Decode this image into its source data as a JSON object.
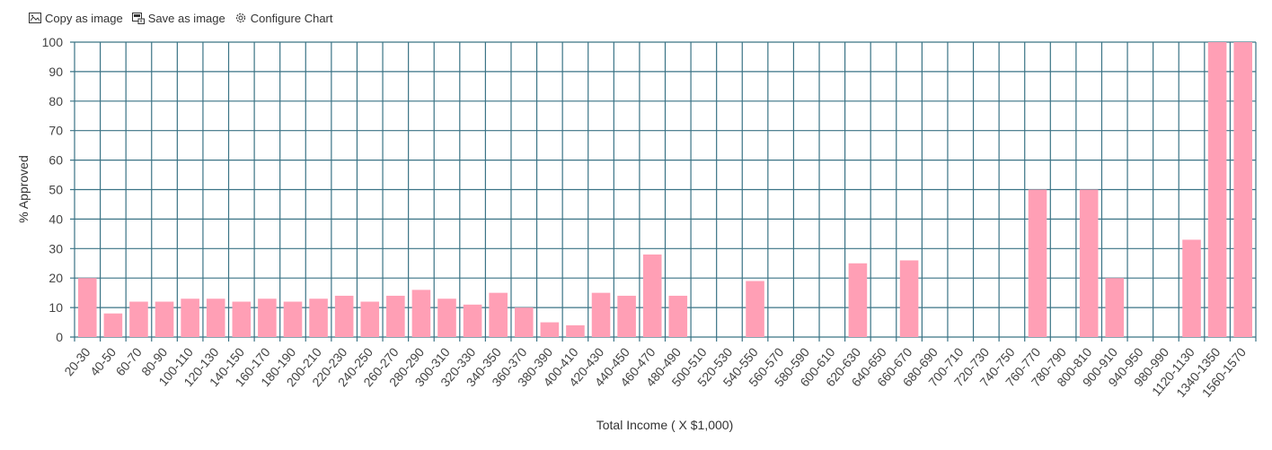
{
  "toolbar": {
    "copy_label": "Copy as image",
    "save_label": "Save as image",
    "configure_label": "Configure Chart"
  },
  "colors": {
    "bar": "#ff9fb5",
    "grid": "#3a7385",
    "text": "#444444"
  },
  "chart_data": {
    "type": "bar",
    "title": "",
    "xlabel": "Total Income ( X $1,000)",
    "ylabel": "% Approved",
    "ylim": [
      0,
      100
    ],
    "yticks": [
      0,
      10,
      20,
      30,
      40,
      50,
      60,
      70,
      80,
      90,
      100
    ],
    "grid": true,
    "categories": [
      "20-30",
      "40-50",
      "60-70",
      "80-90",
      "100-110",
      "120-130",
      "140-150",
      "160-170",
      "180-190",
      "200-210",
      "220-230",
      "240-250",
      "260-270",
      "280-290",
      "300-310",
      "320-330",
      "340-350",
      "360-370",
      "380-390",
      "400-410",
      "420-430",
      "440-450",
      "460-470",
      "480-490",
      "500-510",
      "520-530",
      "540-550",
      "560-570",
      "580-590",
      "600-610",
      "620-630",
      "640-650",
      "660-670",
      "680-690",
      "700-710",
      "720-730",
      "740-750",
      "760-770",
      "780-790",
      "800-810",
      "900-910",
      "940-950",
      "980-990",
      "1120-1130",
      "1340-1350",
      "1560-1570"
    ],
    "values": [
      20,
      8,
      12,
      12,
      13,
      13,
      12,
      13,
      12,
      13,
      14,
      12,
      14,
      16,
      13,
      11,
      15,
      10,
      5,
      4,
      15,
      14,
      28,
      14,
      0,
      0,
      19,
      0,
      0,
      0,
      25,
      0,
      26,
      0,
      0,
      0,
      0,
      50,
      0,
      50,
      20,
      0,
      0,
      33,
      100,
      100
    ]
  }
}
